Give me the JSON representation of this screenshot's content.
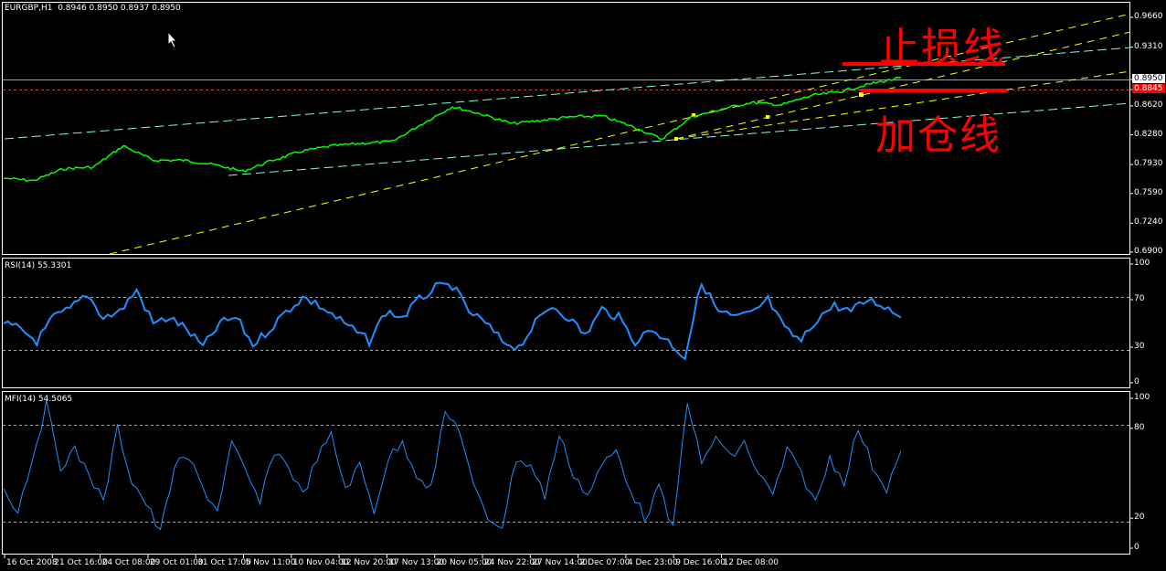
{
  "header": {
    "symbol": "EURGBP,H1",
    "ohlc": "0.8946 0.8950 0.8937 0.8950"
  },
  "annotations": {
    "stop_loss": "止损线",
    "add_position": "加仓线"
  },
  "colors": {
    "price": "#00ff00",
    "indicator": "#1e90ff",
    "trend_yellow": "#ffff00",
    "channel_cyan": "#7fffd4",
    "annotation": "#ff0000"
  },
  "chart_data": [
    {
      "type": "line",
      "title": "EURGBP,H1",
      "ylim": [
        0.69,
        0.966
      ],
      "yticks": [
        "0.9660",
        "0.9310",
        "0.8950",
        "0.8845",
        "0.8620",
        "0.8280",
        "0.7930",
        "0.7590",
        "0.7240",
        "0.6900"
      ],
      "current_price": "0.8950",
      "marked_price": "0.8845",
      "xticks": [
        "16 Oct 2008",
        "21 Oct 16:00",
        "24 Oct 08:00",
        "29 Oct 01:00",
        "31 Oct 17:00",
        "5 Nov 11:00",
        "10 Nov 04:00",
        "12 Nov 20:00",
        "17 Nov 13:00",
        "20 Nov 05:00",
        "24 Nov 22:00",
        "27 Nov 14:00",
        "2 Dec 07:00",
        "4 Dec 23:00",
        "9 Dec 16:00",
        "12 Dec 08:00"
      ],
      "series": [
        {
          "values": [
            0.777,
            0.774,
            0.788,
            0.79,
            0.815,
            0.798,
            0.798,
            0.793,
            0.785,
            0.798,
            0.809,
            0.815,
            0.818,
            0.82,
            0.841,
            0.861,
            0.852,
            0.841,
            0.845,
            0.849,
            0.85,
            0.838,
            0.823,
            0.849,
            0.858,
            0.866,
            0.863,
            0.874,
            0.879,
            0.888,
            0.895
          ]
        }
      ],
      "grid": false
    },
    {
      "type": "line",
      "title": "RSI(14) 55.3301",
      "ylim": [
        0,
        100
      ],
      "yticks": [
        "100",
        "70",
        "30",
        "0"
      ],
      "levels": [
        70,
        30
      ],
      "series": [
        {
          "values": [
            50,
            45,
            35,
            55,
            62,
            75,
            55,
            60,
            78,
            50,
            55,
            45,
            30,
            50,
            55,
            32,
            45,
            60,
            72,
            65,
            55,
            45,
            35,
            60,
            55,
            70,
            80,
            82,
            60,
            50,
            35,
            30,
            50,
            65,
            55,
            40,
            62,
            55,
            35,
            45,
            35,
            22,
            85,
            60,
            55,
            58,
            70,
            45,
            35,
            55,
            65,
            60,
            70,
            65,
            55
          ]
        }
      ]
    },
    {
      "type": "line",
      "title": "MFI(14) 54.5065",
      "ylim": [
        0,
        100
      ],
      "yticks": [
        "100",
        "80",
        "20",
        "0"
      ],
      "levels": [
        80,
        20
      ],
      "series": [
        {
          "values": [
            40,
            25,
            60,
            95,
            55,
            65,
            50,
            30,
            80,
            45,
            30,
            10,
            55,
            60,
            40,
            25,
            70,
            50,
            30,
            65,
            55,
            35,
            60,
            75,
            40,
            55,
            25,
            60,
            70,
            50,
            40,
            90,
            80,
            40,
            20,
            15,
            60,
            55,
            35,
            75,
            50,
            35,
            55,
            65,
            40,
            20,
            40,
            12,
            100,
            55,
            75,
            60,
            70,
            50,
            35,
            65,
            50,
            30,
            60,
            45,
            80,
            55,
            40,
            65
          ]
        }
      ]
    }
  ]
}
